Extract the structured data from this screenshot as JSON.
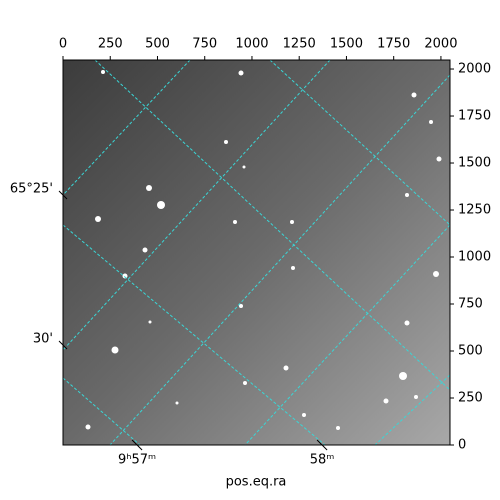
{
  "chart_data": {
    "type": "image",
    "xlabel": "pos.eq.ra",
    "xlim": [
      0,
      2048
    ],
    "xticks": [
      0,
      250,
      500,
      750,
      1000,
      1250,
      1500,
      1750,
      2000
    ],
    "ylim": [
      0,
      2048
    ],
    "yticks": [
      0,
      250,
      500,
      750,
      1000,
      1250,
      1500,
      1750,
      2000
    ],
    "ra_ticks": [
      {
        "value": 392,
        "label": "9ʰ57ᵐ"
      },
      {
        "value": 1371,
        "label": "58ᵐ"
      }
    ],
    "dec_ticks": [
      {
        "value": 1330,
        "label": "65°25'"
      },
      {
        "value": 532,
        "label": "30'"
      }
    ],
    "grid_color": "#3ad6d6"
  }
}
